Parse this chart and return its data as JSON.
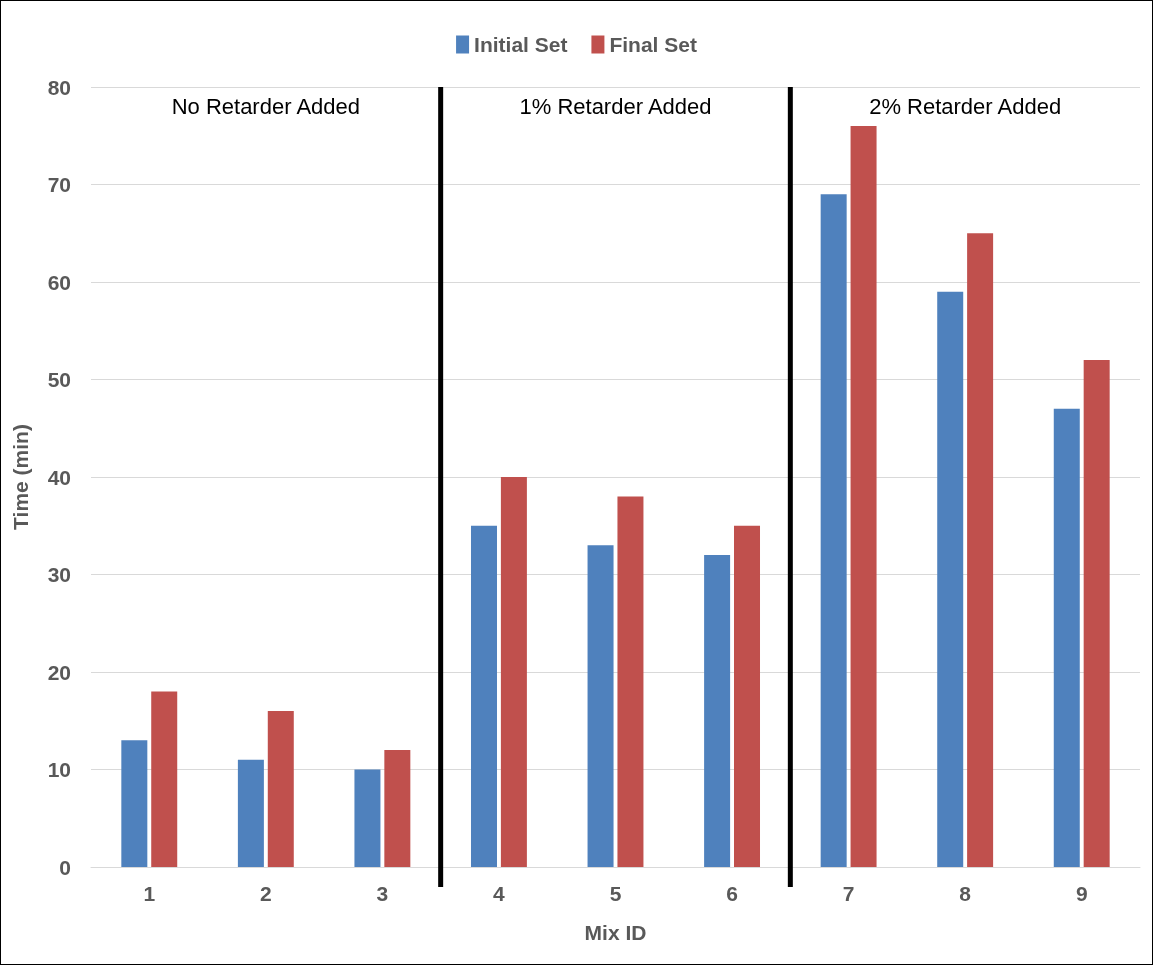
{
  "chart_data": {
    "type": "bar",
    "xlabel": "Mix ID",
    "ylabel": "Time (min)",
    "categories": [
      "1",
      "2",
      "3",
      "4",
      "5",
      "6",
      "7",
      "8",
      "9"
    ],
    "series": [
      {
        "name": "Initial Set",
        "color": "#4f81bd",
        "values": [
          13,
          11,
          10,
          35,
          33,
          32,
          69,
          59,
          47
        ]
      },
      {
        "name": "Final Set",
        "color": "#c0504d",
        "values": [
          18,
          16,
          12,
          40,
          38,
          35,
          76,
          65,
          52
        ]
      }
    ],
    "ylim": [
      0,
      80
    ],
    "yticks": [
      0,
      10,
      20,
      30,
      40,
      50,
      60,
      70,
      80
    ],
    "grid": "y",
    "legend": "top",
    "annotations": [
      "No Retarder Added",
      "1% Retarder Added",
      "2% Retarder Added"
    ]
  }
}
